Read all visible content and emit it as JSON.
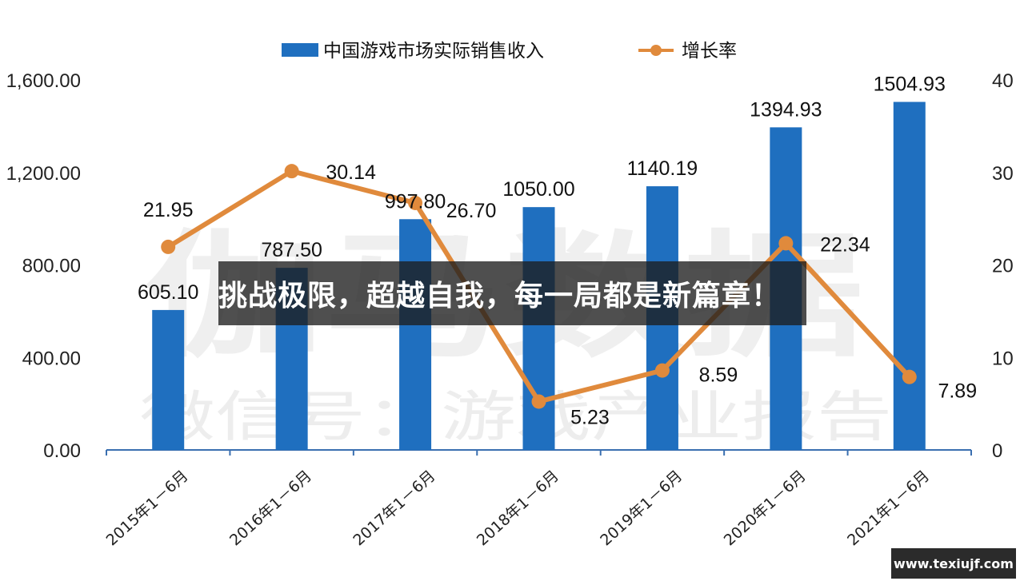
{
  "chart_data": {
    "type": "bar",
    "categories": [
      "2015年1－6月",
      "2016年1－6月",
      "2017年1－6月",
      "2018年1－6月",
      "2019年1－6月",
      "2020年1－6月",
      "2021年1－6月"
    ],
    "series": [
      {
        "name": "中国游戏市场实际销售收入",
        "type": "bar",
        "axis": "left",
        "values": [
          605.1,
          787.5,
          997.8,
          1050.0,
          1140.19,
          1394.93,
          1504.93
        ],
        "labels": [
          "605.10",
          "787.50",
          "997.80",
          "1050.00",
          "1140.19",
          "1394.93",
          "1504.93"
        ],
        "color": "#1f6fbf"
      },
      {
        "name": "增长率",
        "type": "line",
        "axis": "right",
        "values": [
          21.95,
          30.14,
          26.7,
          5.23,
          8.59,
          22.34,
          7.89
        ],
        "labels": [
          "21.95",
          "30.14",
          "26.70",
          "5.23",
          "8.59",
          "22.34",
          "7.89"
        ],
        "color": "#e08a3c"
      }
    ],
    "left_axis": {
      "range": [
        0,
        1600
      ],
      "ticks": [
        "0.00",
        "400.00",
        "800.00",
        "1,200.00",
        "1,600.00"
      ]
    },
    "right_axis": {
      "range": [
        0,
        40
      ],
      "ticks": [
        "0",
        "10",
        "20",
        "30",
        "40"
      ]
    },
    "legend_position": "top-center",
    "grid": false
  },
  "watermark": {
    "line1": "伽马数据",
    "line2": "微信号：游戏产业报告"
  },
  "banner": {
    "text": "挑战极限，超越自我，每一局都是新篇章！"
  },
  "site_badge": {
    "text": "www.texiujf.com"
  }
}
